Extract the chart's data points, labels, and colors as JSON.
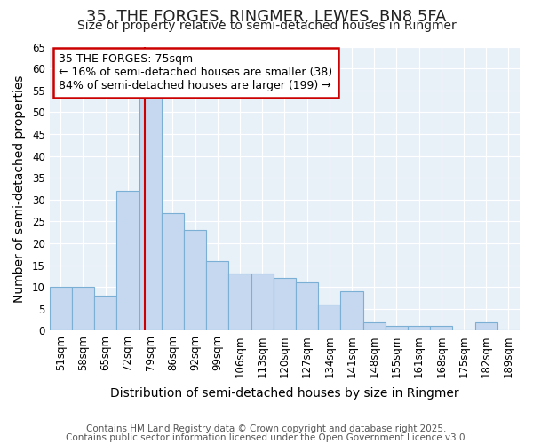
{
  "title1": "35, THE FORGES, RINGMER, LEWES, BN8 5FA",
  "title2": "Size of property relative to semi-detached houses in Ringmer",
  "xlabel": "Distribution of semi-detached houses by size in Ringmer",
  "ylabel": "Number of semi-detached properties",
  "categories": [
    "51sqm",
    "58sqm",
    "65sqm",
    "72sqm",
    "79sqm",
    "86sqm",
    "92sqm",
    "99sqm",
    "106sqm",
    "113sqm",
    "120sqm",
    "127sqm",
    "134sqm",
    "141sqm",
    "148sqm",
    "155sqm",
    "161sqm",
    "168sqm",
    "175sqm",
    "182sqm",
    "189sqm"
  ],
  "values": [
    10,
    10,
    8,
    32,
    54,
    27,
    23,
    16,
    13,
    13,
    12,
    11,
    6,
    9,
    2,
    1,
    1,
    1,
    0,
    2,
    0
  ],
  "bar_color": "#c5d8f0",
  "bar_edge_color": "#7bafd4",
  "red_line_x": 3.75,
  "annotation_title": "35 THE FORGES: 75sqm",
  "annotation_line1": "← 16% of semi-detached houses are smaller (38)",
  "annotation_line2": "84% of semi-detached houses are larger (199) →",
  "annotation_box_color": "#ffffff",
  "annotation_box_edge": "#cc0000",
  "ylim": [
    0,
    65
  ],
  "yticks": [
    0,
    5,
    10,
    15,
    20,
    25,
    30,
    35,
    40,
    45,
    50,
    55,
    60,
    65
  ],
  "footnote1": "Contains HM Land Registry data © Crown copyright and database right 2025.",
  "footnote2": "Contains public sector information licensed under the Open Government Licence v3.0.",
  "bg_color": "#ffffff",
  "plot_bg_color": "#e8f0f8",
  "title_fontsize": 13,
  "subtitle_fontsize": 10,
  "axis_label_fontsize": 10,
  "tick_fontsize": 8.5,
  "annotation_fontsize": 9,
  "footnote_fontsize": 7.5
}
